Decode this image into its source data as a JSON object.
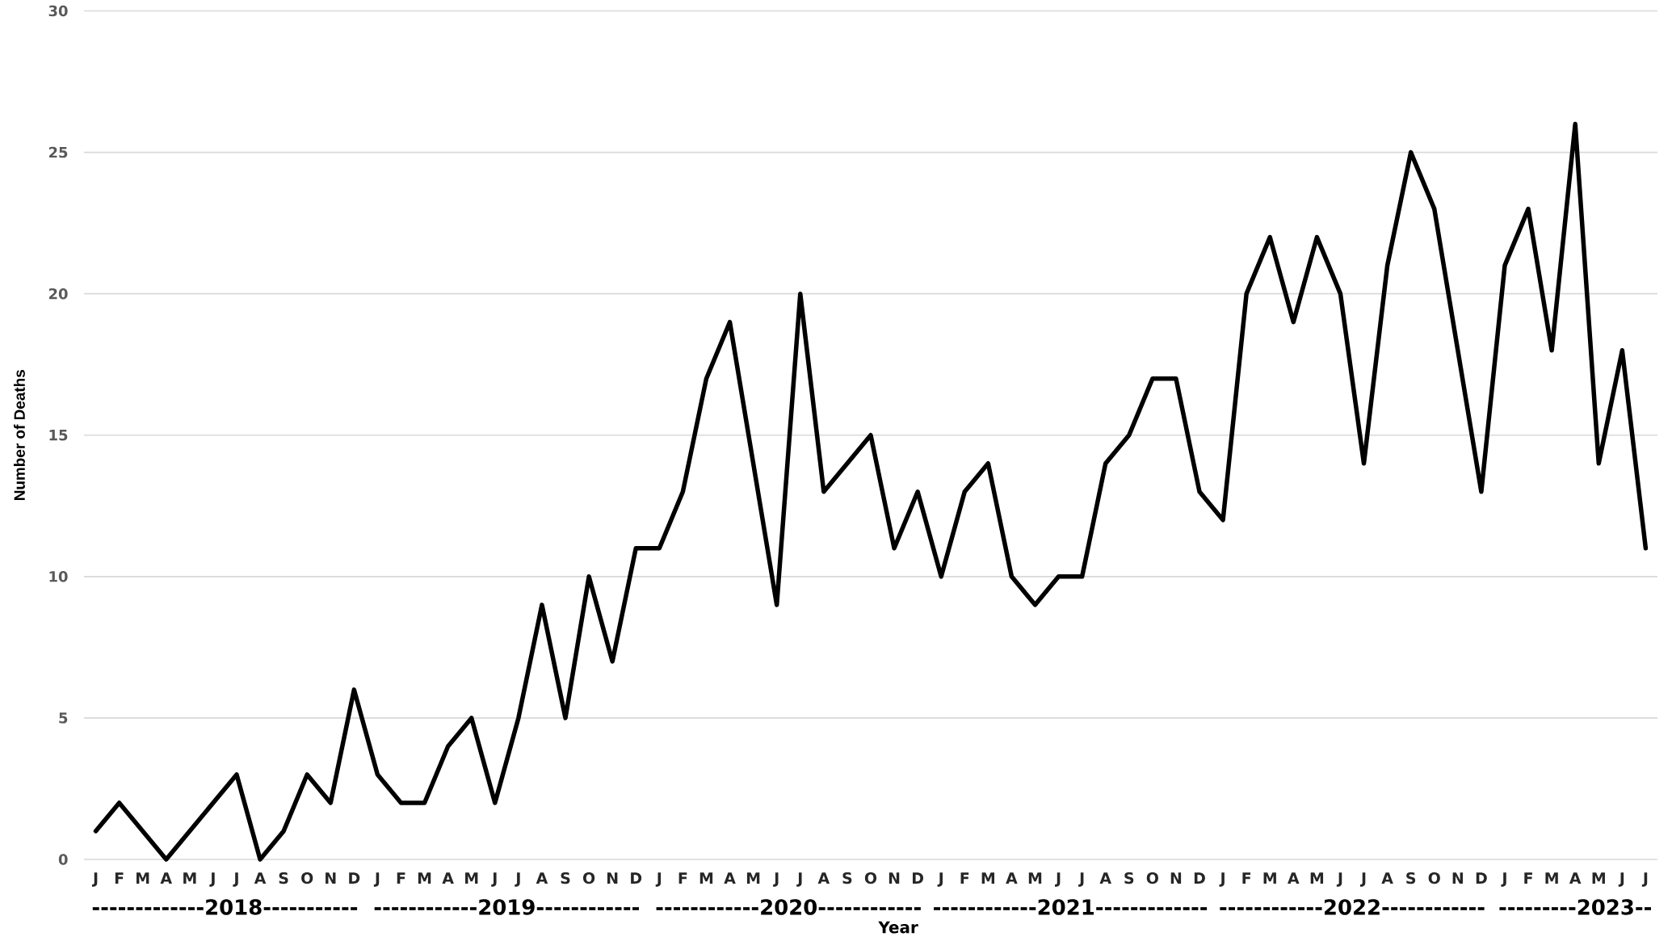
{
  "chart_data": {
    "type": "line",
    "xlabel": "Year",
    "ylabel": "Number of Deaths",
    "categories": [
      "J",
      "F",
      "M",
      "A",
      "M",
      "J",
      "J",
      "A",
      "S",
      "O",
      "N",
      "D",
      "J",
      "F",
      "M",
      "A",
      "M",
      "J",
      "J",
      "A",
      "S",
      "O",
      "N",
      "D",
      "J",
      "F",
      "M",
      "A",
      "M",
      "J",
      "J",
      "A",
      "S",
      "O",
      "N",
      "D",
      "J",
      "F",
      "M",
      "A",
      "M",
      "J",
      "J",
      "A",
      "S",
      "O",
      "N",
      "D",
      "J",
      "F",
      "M",
      "A",
      "M",
      "J",
      "J",
      "A",
      "S",
      "O",
      "N",
      "D",
      "J",
      "F",
      "M",
      "A",
      "M",
      "J",
      "J"
    ],
    "series": [
      {
        "color": "#000000",
        "values": [
          1,
          2,
          1,
          0,
          1,
          2,
          3,
          0,
          1,
          3,
          2,
          6,
          3,
          2,
          2,
          4,
          5,
          2,
          5,
          9,
          5,
          10,
          7,
          11,
          11,
          13,
          17,
          19,
          14,
          9,
          20,
          13,
          14,
          15,
          11,
          13,
          10,
          13,
          14,
          10,
          9,
          10,
          10,
          14,
          15,
          17,
          17,
          13,
          12,
          20,
          22,
          19,
          22,
          20,
          14,
          21,
          25,
          23,
          18,
          13,
          21,
          23,
          18,
          26,
          14,
          18,
          11
        ]
      }
    ],
    "ylim": [
      0,
      30
    ],
    "yticks": [
      0,
      5,
      10,
      15,
      20,
      25,
      30
    ],
    "grid": "y",
    "annotations": [
      "-------------2018-----------",
      "------------2019------------",
      "------------2020------------",
      "------------2021-------------",
      "------------2022------------",
      "---------2023--"
    ]
  }
}
